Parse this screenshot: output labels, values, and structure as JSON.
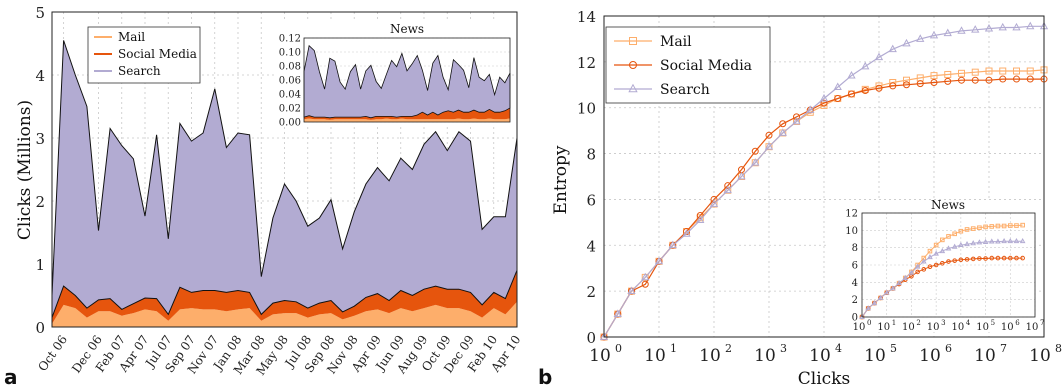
{
  "panels": {
    "a": {
      "label": "a"
    },
    "b": {
      "label": "b"
    }
  },
  "colors": {
    "mail": "#fdae6b",
    "social": "#e6550d",
    "search": "#b2abd2"
  },
  "chart_data": [
    {
      "type": "area",
      "panel": "a",
      "title": "",
      "ylabel": "Clicks (Millions)",
      "xlabel": "",
      "ylim": [
        0,
        5
      ],
      "yticks": [
        0,
        1,
        2,
        3,
        4,
        5
      ],
      "grid": true,
      "legend_position": "top-left",
      "stacked": true,
      "x_tick_labels": [
        "Oct 06",
        "Dec 06",
        "Feb 07",
        "Apr 07",
        "Jul 07",
        "Sep 07",
        "Nov 07",
        "Jan 08",
        "Mar 08",
        "May 08",
        "Jul 08",
        "Sep 08",
        "Nov 08",
        "Apr 09",
        "Jun 09",
        "Aug 09",
        "Oct 09",
        "Dec 09",
        "Feb 10",
        "Apr 10"
      ],
      "x_tick_positions": [
        1,
        4,
        6,
        8,
        10,
        12,
        14,
        16,
        18,
        20,
        22,
        24,
        26,
        28,
        30,
        32,
        34,
        36,
        38,
        40
      ],
      "n_points": 41,
      "series": [
        {
          "name": "Mail",
          "values": [
            0.05,
            0.35,
            0.3,
            0.15,
            0.25,
            0.25,
            0.18,
            0.22,
            0.28,
            0.25,
            0.1,
            0.28,
            0.3,
            0.28,
            0.28,
            0.25,
            0.28,
            0.3,
            0.1,
            0.2,
            0.22,
            0.22,
            0.15,
            0.2,
            0.22,
            0.12,
            0.18,
            0.25,
            0.28,
            0.22,
            0.3,
            0.25,
            0.3,
            0.35,
            0.3,
            0.3,
            0.25,
            0.15,
            0.3,
            0.2,
            0.4
          ]
        },
        {
          "name": "Social Media",
          "values": [
            0.1,
            0.3,
            0.2,
            0.15,
            0.18,
            0.2,
            0.1,
            0.15,
            0.18,
            0.2,
            0.1,
            0.35,
            0.25,
            0.3,
            0.3,
            0.3,
            0.3,
            0.25,
            0.1,
            0.18,
            0.2,
            0.18,
            0.15,
            0.18,
            0.2,
            0.12,
            0.15,
            0.22,
            0.25,
            0.2,
            0.28,
            0.25,
            0.3,
            0.3,
            0.3,
            0.3,
            0.3,
            0.2,
            0.25,
            0.25,
            0.5
          ]
        },
        {
          "name": "Search",
          "values": [
            0.35,
            3.9,
            3.5,
            3.2,
            1.1,
            2.7,
            2.6,
            2.3,
            1.3,
            2.6,
            1.2,
            2.6,
            2.4,
            2.5,
            3.2,
            2.3,
            2.5,
            2.5,
            0.6,
            1.35,
            1.85,
            1.6,
            1.3,
            1.35,
            1.6,
            1.0,
            1.5,
            1.8,
            2.0,
            1.9,
            2.1,
            2.0,
            2.3,
            2.45,
            2.2,
            2.5,
            2.4,
            1.2,
            1.2,
            1.3,
            2.1
          ]
        }
      ],
      "inset": {
        "title": "News",
        "ylim": [
          0,
          0.12
        ],
        "yticks": [
          0.0,
          0.02,
          0.04,
          0.06,
          0.08,
          0.1,
          0.12
        ],
        "series": [
          {
            "name": "Mail",
            "values": [
              0.004,
              0.005,
              0.004,
              0.004,
              0.004,
              0.003,
              0.004,
              0.004,
              0.004,
              0.004,
              0.004,
              0.004,
              0.004,
              0.003,
              0.004,
              0.004,
              0.005,
              0.004,
              0.004,
              0.005,
              0.004,
              0.004,
              0.004,
              0.004,
              0.004,
              0.004,
              0.004,
              0.004,
              0.004,
              0.004,
              0.005,
              0.004,
              0.004,
              0.005,
              0.004,
              0.004,
              0.005,
              0.004,
              0.004,
              0.004,
              0.005
            ]
          },
          {
            "name": "Social Media",
            "values": [
              0.003,
              0.004,
              0.003,
              0.003,
              0.003,
              0.003,
              0.003,
              0.003,
              0.003,
              0.003,
              0.003,
              0.003,
              0.004,
              0.003,
              0.004,
              0.004,
              0.003,
              0.004,
              0.003,
              0.003,
              0.004,
              0.004,
              0.006,
              0.01,
              0.006,
              0.01,
              0.006,
              0.01,
              0.012,
              0.01,
              0.012,
              0.01,
              0.01,
              0.012,
              0.01,
              0.01,
              0.013,
              0.01,
              0.01,
              0.012,
              0.015
            ]
          },
          {
            "name": "Search",
            "values": [
              0.065,
              0.1,
              0.095,
              0.065,
              0.04,
              0.085,
              0.08,
              0.05,
              0.04,
              0.065,
              0.075,
              0.04,
              0.065,
              0.075,
              0.05,
              0.04,
              0.06,
              0.08,
              0.072,
              0.09,
              0.065,
              0.075,
              0.085,
              0.06,
              0.035,
              0.07,
              0.085,
              0.05,
              0.03,
              0.075,
              0.065,
              0.06,
              0.035,
              0.075,
              0.05,
              0.045,
              0.05,
              0.025,
              0.05,
              0.04,
              0.05
            ]
          }
        ]
      }
    },
    {
      "type": "line",
      "panel": "b",
      "title": "",
      "xlabel": "Clicks",
      "ylabel": "Entropy",
      "xscale": "log",
      "xlim_exp": [
        0,
        8
      ],
      "ylim": [
        0,
        14
      ],
      "yticks": [
        0,
        2,
        4,
        6,
        8,
        10,
        12,
        14
      ],
      "x_tick_labels": [
        "10",
        "10",
        "10",
        "10",
        "10",
        "10",
        "10",
        "10",
        "10"
      ],
      "x_tick_exponents": [
        "0",
        "1",
        "2",
        "3",
        "4",
        "5",
        "6",
        "7",
        "8"
      ],
      "grid": true,
      "legend_position": "top-left",
      "series": [
        {
          "name": "Mail",
          "marker": "square",
          "log10_x": [
            0,
            0.25,
            0.5,
            0.75,
            1,
            1.25,
            1.5,
            1.75,
            2,
            2.25,
            2.5,
            2.75,
            3,
            3.25,
            3.5,
            3.75,
            4,
            4.25,
            4.5,
            4.75,
            5,
            5.25,
            5.5,
            5.75,
            6,
            6.25,
            6.5,
            6.75,
            7,
            7.25,
            7.5,
            7.75,
            8
          ],
          "values": [
            0,
            1.0,
            2.0,
            2.6,
            3.3,
            4.0,
            4.6,
            5.2,
            5.8,
            6.4,
            7.0,
            7.6,
            8.3,
            8.9,
            9.4,
            9.8,
            10.1,
            10.4,
            10.6,
            10.8,
            10.95,
            11.1,
            11.2,
            11.3,
            11.4,
            11.45,
            11.5,
            11.55,
            11.6,
            11.6,
            11.6,
            11.6,
            11.65
          ]
        },
        {
          "name": "Social Media",
          "marker": "circle",
          "log10_x": [
            0,
            0.25,
            0.5,
            0.75,
            1,
            1.25,
            1.5,
            1.75,
            2,
            2.25,
            2.5,
            2.75,
            3,
            3.25,
            3.5,
            3.75,
            4,
            4.25,
            4.5,
            4.75,
            5,
            5.25,
            5.5,
            5.75,
            6,
            6.25,
            6.5,
            6.75,
            7,
            7.25,
            7.5,
            7.75,
            8
          ],
          "values": [
            0,
            1.0,
            2.0,
            2.3,
            3.3,
            4.0,
            4.6,
            5.3,
            6.0,
            6.6,
            7.3,
            8.1,
            8.8,
            9.3,
            9.6,
            9.9,
            10.2,
            10.4,
            10.6,
            10.75,
            10.85,
            10.95,
            11.0,
            11.05,
            11.1,
            11.15,
            11.2,
            11.2,
            11.2,
            11.25,
            11.25,
            11.25,
            11.25
          ]
        },
        {
          "name": "Search",
          "marker": "triangle",
          "log10_x": [
            0,
            0.25,
            0.5,
            0.75,
            1,
            1.25,
            1.5,
            1.75,
            2,
            2.25,
            2.5,
            2.75,
            3,
            3.25,
            3.5,
            3.75,
            4,
            4.25,
            4.5,
            4.75,
            5,
            5.25,
            5.5,
            5.75,
            6,
            6.25,
            6.5,
            6.75,
            7,
            7.25,
            7.5,
            7.75,
            8
          ],
          "values": [
            0,
            1.0,
            2.0,
            2.6,
            3.3,
            4.0,
            4.5,
            5.1,
            5.8,
            6.4,
            7.0,
            7.6,
            8.3,
            8.9,
            9.4,
            9.9,
            10.4,
            10.9,
            11.4,
            11.8,
            12.2,
            12.55,
            12.8,
            13.0,
            13.15,
            13.25,
            13.35,
            13.4,
            13.45,
            13.5,
            13.5,
            13.55,
            13.55
          ]
        }
      ],
      "inset": {
        "title": "News",
        "xscale": "log",
        "xlim_exp": [
          0,
          7
        ],
        "ylim": [
          0,
          12
        ],
        "yticks": [
          0,
          2,
          4,
          6,
          8,
          10,
          12
        ],
        "x_tick_exponents": [
          "0",
          "1",
          "2",
          "3",
          "4",
          "5",
          "6",
          "7"
        ],
        "series": [
          {
            "name": "Mail",
            "log10_x": [
              0,
              0.25,
              0.5,
              0.75,
              1,
              1.25,
              1.5,
              1.75,
              2,
              2.25,
              2.5,
              2.75,
              3,
              3.25,
              3.5,
              3.75,
              4,
              4.25,
              4.5,
              4.75,
              5,
              5.25,
              5.5,
              5.75,
              6,
              6.25,
              6.5
            ],
            "values": [
              0,
              1.0,
              1.6,
              2.2,
              2.8,
              3.3,
              3.9,
              4.5,
              5.2,
              6.0,
              6.8,
              7.6,
              8.3,
              8.9,
              9.3,
              9.6,
              9.9,
              10.1,
              10.2,
              10.3,
              10.4,
              10.45,
              10.5,
              10.5,
              10.55,
              10.55,
              10.6
            ]
          },
          {
            "name": "Social Media",
            "log10_x": [
              0,
              0.25,
              0.5,
              0.75,
              1,
              1.25,
              1.5,
              1.75,
              2,
              2.25,
              2.5,
              2.75,
              3,
              3.25,
              3.5,
              3.75,
              4,
              4.25,
              4.5,
              4.75,
              5,
              5.25,
              5.5,
              5.75,
              6,
              6.25,
              6.5
            ],
            "values": [
              0,
              1.0,
              1.6,
              2.2,
              2.8,
              3.3,
              3.8,
              4.3,
              4.7,
              5.2,
              5.5,
              5.8,
              6.0,
              6.2,
              6.4,
              6.5,
              6.6,
              6.65,
              6.7,
              6.75,
              6.75,
              6.8,
              6.8,
              6.8,
              6.8,
              6.8,
              6.8
            ]
          },
          {
            "name": "Search",
            "log10_x": [
              0,
              0.25,
              0.5,
              0.75,
              1,
              1.25,
              1.5,
              1.75,
              2,
              2.25,
              2.5,
              2.75,
              3,
              3.25,
              3.5,
              3.75,
              4,
              4.25,
              4.5,
              4.75,
              5,
              5.25,
              5.5,
              5.75,
              6,
              6.25,
              6.5
            ],
            "values": [
              0,
              1.0,
              1.6,
              2.2,
              2.8,
              3.3,
              3.9,
              4.5,
              5.1,
              5.8,
              6.4,
              6.9,
              7.3,
              7.6,
              7.9,
              8.1,
              8.3,
              8.4,
              8.5,
              8.6,
              8.65,
              8.7,
              8.7,
              8.75,
              8.75,
              8.75,
              8.75
            ]
          }
        ]
      }
    }
  ]
}
